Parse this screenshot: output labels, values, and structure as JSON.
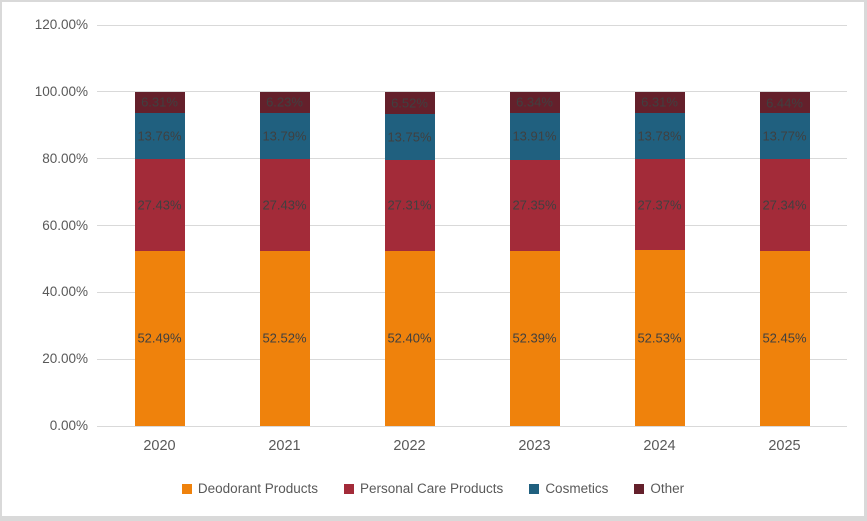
{
  "chart_data": {
    "type": "bar",
    "subtype": "stacked-100-percent-column",
    "title": "",
    "xlabel": "",
    "ylabel": "",
    "categories": [
      "2020",
      "2021",
      "2022",
      "2023",
      "2024",
      "2025"
    ],
    "series": [
      {
        "name": "Deodorant Products",
        "color": "#EF820C",
        "values": [
          52.49,
          52.52,
          52.4,
          52.39,
          52.53,
          52.45
        ],
        "labels": [
          "52.49%",
          "52.52%",
          "52.40%",
          "52.39%",
          "52.53%",
          "52.45%"
        ]
      },
      {
        "name": "Personal Care Products",
        "color": "#A32B39",
        "values": [
          27.43,
          27.43,
          27.31,
          27.35,
          27.37,
          27.34
        ],
        "labels": [
          "27.43%",
          "27.43%",
          "27.31%",
          "27.35%",
          "27.37%",
          "27.34%"
        ]
      },
      {
        "name": "Cosmetics",
        "color": "#20607F",
        "values": [
          13.76,
          13.79,
          13.75,
          13.91,
          13.78,
          13.77
        ],
        "labels": [
          "13.76%",
          "13.79%",
          "13.75%",
          "13.91%",
          "13.78%",
          "13.77%"
        ]
      },
      {
        "name": "Other",
        "color": "#64202B",
        "values": [
          6.31,
          6.23,
          6.52,
          6.34,
          6.31,
          6.44
        ],
        "labels": [
          "6.31%",
          "6.23%",
          "6.52%",
          "6.34%",
          "6.31%",
          "6.44%"
        ]
      }
    ],
    "y_ticks": [
      "0.00%",
      "20.00%",
      "40.00%",
      "60.00%",
      "80.00%",
      "100.00%",
      "120.00%"
    ],
    "ylim": [
      0,
      120
    ],
    "grid": true,
    "legend_position": "bottom",
    "colors": {
      "gridline": "#d9d9d9",
      "axis_text": "#595959",
      "data_label": "#404040",
      "frame_border": "#d9d9d9",
      "background": "#ffffff"
    }
  }
}
